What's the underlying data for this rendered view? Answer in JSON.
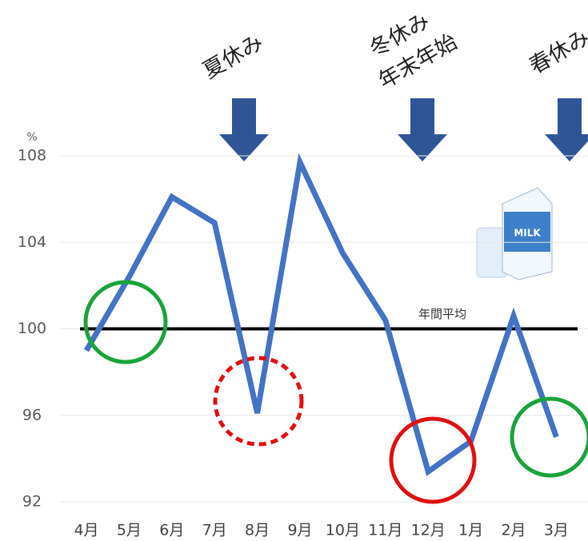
{
  "chart_data": {
    "type": "line",
    "y_unit": "%",
    "categories": [
      "4月",
      "5月",
      "6月",
      "7月",
      "8月",
      "9月",
      "10月",
      "11月",
      "12月",
      "1月",
      "2月",
      "3月"
    ],
    "series": [
      {
        "name": null,
        "color": "#4472c4",
        "values": [
          99.0,
          102.4,
          106.1,
          104.9,
          96.1,
          107.7,
          103.5,
          100.4,
          93.4,
          94.8,
          100.6,
          95.0
        ]
      }
    ],
    "ylim": [
      92,
      108
    ],
    "yticks": [
      92,
      96,
      100,
      104,
      108
    ],
    "average_line": {
      "value": 100,
      "label": "年間平均",
      "color": "#000000"
    },
    "annotations": [
      "夏休み",
      "冬休み",
      "年末年始",
      "春休み"
    ]
  }
}
